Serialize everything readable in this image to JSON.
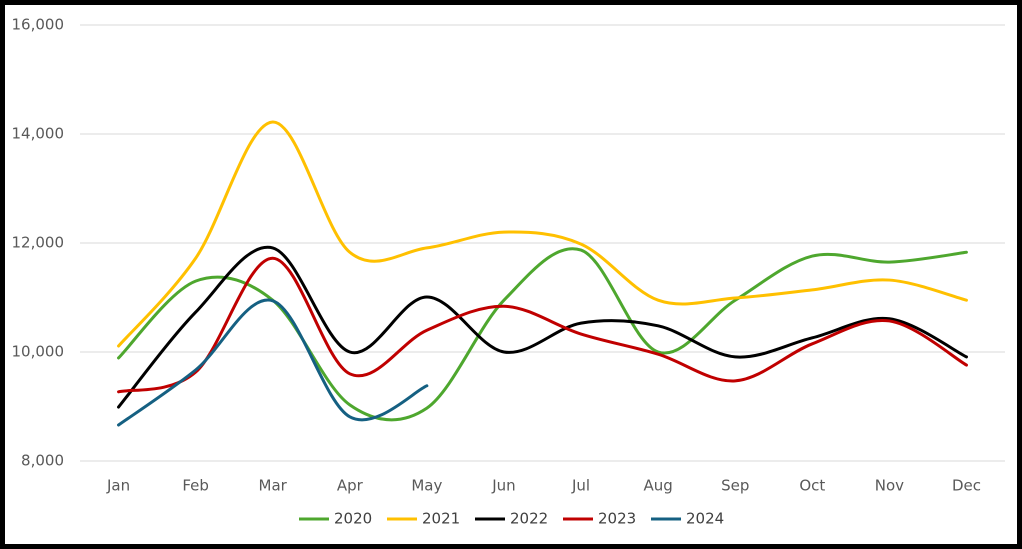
{
  "chart_data": {
    "type": "line",
    "categories": [
      "Jan",
      "Feb",
      "Mar",
      "Apr",
      "May",
      "Jun",
      "Jul",
      "Aug",
      "Sep",
      "Oct",
      "Nov",
      "Dec"
    ],
    "series": [
      {
        "name": "2020",
        "color": "#4ea72e",
        "values": [
          9890,
          11300,
          10950,
          9030,
          8970,
          10950,
          11870,
          10000,
          10950,
          11760,
          11650,
          11830
        ]
      },
      {
        "name": "2021",
        "color": "#ffc000",
        "values": [
          10110,
          11720,
          14220,
          11830,
          11910,
          12200,
          11980,
          10950,
          10990,
          11140,
          11320,
          10950
        ]
      },
      {
        "name": "2022",
        "color": "#000000",
        "values": [
          8990,
          10730,
          11910,
          10000,
          11010,
          10000,
          10530,
          10480,
          9910,
          10260,
          10610,
          9910
        ]
      },
      {
        "name": "2023",
        "color": "#c00000",
        "values": [
          9270,
          9630,
          11720,
          9600,
          10400,
          10840,
          10330,
          9960,
          9470,
          10150,
          10570,
          9760
        ]
      },
      {
        "name": "2024",
        "color": "#156082",
        "values": [
          8660,
          9670,
          10940,
          8810,
          9380,
          null,
          null,
          null,
          null,
          null,
          null,
          null
        ]
      }
    ],
    "ylim": [
      8000,
      16000
    ],
    "yticks": [
      {
        "value": 8000,
        "label": "8,000"
      },
      {
        "value": 10000,
        "label": "10,000"
      },
      {
        "value": 12000,
        "label": "12,000"
      },
      {
        "value": 14000,
        "label": "14,000"
      },
      {
        "value": 16000,
        "label": "16,000"
      }
    ],
    "grid": true,
    "smooth": true,
    "legend": "bottom"
  }
}
